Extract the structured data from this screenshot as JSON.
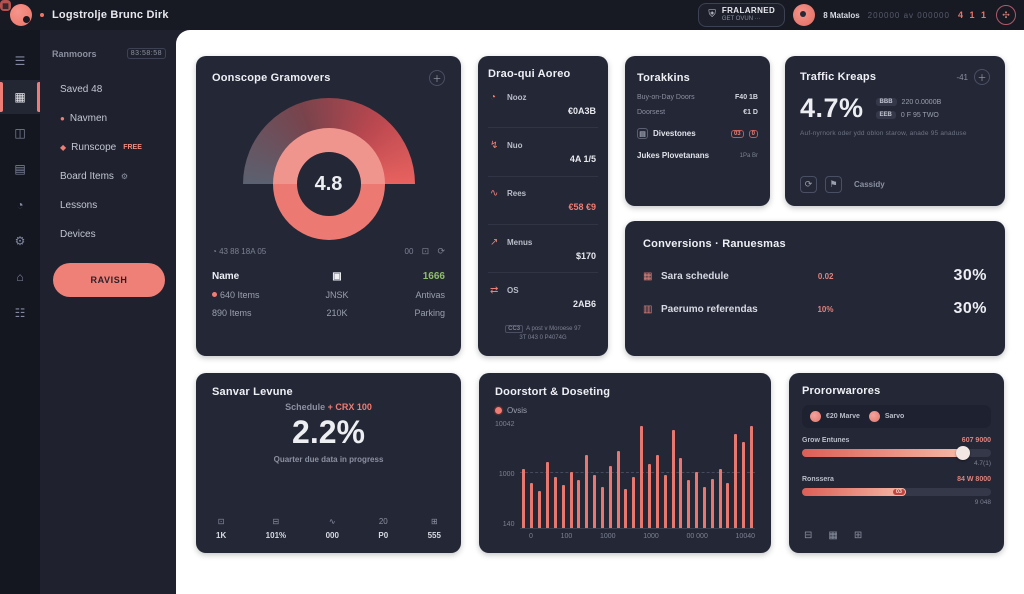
{
  "topbar": {
    "title": "Logstrolje Brunc Dirk",
    "action": {
      "label": "FRALARNED",
      "sub": "GET OVUN ···",
      "icon": "shield"
    },
    "user_name": "8 Matalos",
    "meta": "200000 av 000000",
    "alerts": "4 1 1"
  },
  "sidebar": {
    "rail": [
      {
        "name": "menu-icon",
        "glyph": "☰"
      },
      {
        "name": "dashboard-icon",
        "glyph": "▦"
      },
      {
        "name": "boards-icon",
        "glyph": "◫"
      },
      {
        "name": "calendar-icon",
        "glyph": "▤"
      },
      {
        "name": "history-icon",
        "glyph": "◔"
      },
      {
        "name": "settings-icon",
        "glyph": "⚙"
      },
      {
        "name": "home-icon",
        "glyph": "⌂"
      },
      {
        "name": "list-icon",
        "glyph": "☷"
      }
    ],
    "active_index": 1,
    "header": {
      "label": "Ranmoors",
      "badge": "83:58:58"
    },
    "items": [
      {
        "label": "Saved 48",
        "mini": "",
        "tag": "",
        "trail": ""
      },
      {
        "label": "Navmen",
        "mini": "●",
        "tag": "",
        "trail": ""
      },
      {
        "label": "Runscope",
        "mini": "◆",
        "tag": "FREE",
        "trail": ""
      },
      {
        "label": "Board Items",
        "mini": "",
        "tag": "",
        "trail": "⚙"
      },
      {
        "label": "Lessons",
        "mini": "",
        "tag": "",
        "trail": ""
      },
      {
        "label": "Devices",
        "mini": "",
        "tag": "",
        "trail": ""
      }
    ],
    "cta": "RAVISH"
  },
  "cards": {
    "overview": {
      "title": "Oonscope Gramovers",
      "gauge_value": "4.8",
      "meta_left": "43  88  18A 05",
      "meta_right": "00",
      "table": {
        "columns": [
          {
            "header": "Name",
            "header_style": "white",
            "rows": [
              "640 Items",
              "890 Items"
            ],
            "dot_first": true
          },
          {
            "header": "▣",
            "header_style": "white",
            "rows": [
              "JNSK",
              "210K"
            ],
            "dot_first": false
          },
          {
            "header": "1666",
            "header_style": "green",
            "rows": [
              "Antivas",
              "Parking"
            ],
            "dot_first": false
          }
        ]
      }
    },
    "dropoff": {
      "title": "Drao-qui Aoreo",
      "rows": [
        {
          "icon": "◔",
          "label": "Nooz",
          "value": "€0A3B",
          "accent": false
        },
        {
          "icon": "↯",
          "label": "Nuo",
          "value": "4A 1/5",
          "accent": false
        },
        {
          "icon": "∿",
          "label": "Rees",
          "value": "€58 €9",
          "accent": true
        },
        {
          "icon": "↗",
          "label": "Menus",
          "value": "$170",
          "accent": false
        },
        {
          "icon": "⇄",
          "label": "OS",
          "value": "2AB6",
          "accent": false
        }
      ],
      "footer": {
        "badge": "CC3",
        "line1": "A post v Moroese 97",
        "line2": "3T 043 0 P4074G"
      }
    },
    "tracking": {
      "title": "Torakkins",
      "stats": [
        {
          "label": "Buy-on-Day Doors",
          "value": "F40 1B"
        },
        {
          "label": "Doorsest",
          "value": "€1 D"
        }
      ],
      "divestones": {
        "label": "Divestones",
        "badges": [
          "03",
          "0"
        ]
      },
      "jukes": {
        "label": "Jukes Plovetanans",
        "trail": "1Pa  Br"
      }
    },
    "traffic": {
      "title": "Traffic Kreaps",
      "corner": "-41",
      "big_value": "4.7%",
      "side_rows": [
        {
          "badge": "BBB",
          "text": "220 0.0000B"
        },
        {
          "badge": "EEB",
          "text": "0 F 95 TWO"
        }
      ],
      "note": "Auf-nyrnork oder ydd oblon starow, anade 95 anaduse",
      "footer_label": "Cassidy"
    },
    "conversions": {
      "title": "Conversions · Ranuesmas",
      "rows": [
        {
          "icon": "▦",
          "label": "Sara schedule",
          "mid": "0.02",
          "value": "30%"
        },
        {
          "icon": "▥",
          "label": "Paerumo referendas",
          "mid": "10%",
          "value": "30%"
        }
      ]
    },
    "server": {
      "title": "Sanvar Levune",
      "eyebrow_muted": "Schedule",
      "eyebrow_accent": "+ CRX 100",
      "big_value": "2.2%",
      "subtitle": "Quarter due data in progress",
      "stats": [
        {
          "icon": "⊡",
          "value": "1K"
        },
        {
          "icon": "⊟",
          "value": "101%"
        },
        {
          "icon": "∿",
          "value": "000"
        },
        {
          "icon": "20",
          "value": "P0"
        },
        {
          "icon": "⊞",
          "value": "555"
        }
      ]
    },
    "bookings": {
      "title": "Doorstort & Doseting",
      "legend": "Ovsis"
    },
    "networks": {
      "title": "Prororwarores",
      "legend": [
        {
          "label": "€20 Marve"
        },
        {
          "label": "Sarvo"
        }
      ],
      "sliders": [
        {
          "label": "Grow Entunes",
          "value": "607 9000",
          "progress": 85,
          "sub": "4.7(1)",
          "badge": ""
        },
        {
          "label": "Ronssera",
          "value": "84 W 8000",
          "progress": 55,
          "sub": "9 048",
          "badge": "03"
        }
      ],
      "footer_icons": [
        {
          "name": "export-icon",
          "glyph": "⊟"
        },
        {
          "name": "grid-icon",
          "glyph": "▦"
        },
        {
          "name": "add-icon",
          "glyph": "⊞"
        }
      ]
    }
  },
  "chart_data": {
    "type": "bar",
    "title": "Doorstort & Doseting",
    "legend_entries": [
      "Ovsis"
    ],
    "y_ticks": [
      "10042",
      "1000",
      "140"
    ],
    "x_ticks": [
      "0",
      "100",
      "1000",
      "1000",
      "00 000",
      "10040"
    ],
    "ylim": [
      0,
      100
    ],
    "grid": "dashed-mid",
    "values": [
      55,
      42,
      35,
      62,
      48,
      40,
      52,
      45,
      68,
      50,
      38,
      58,
      72,
      36,
      48,
      95,
      60,
      68,
      50,
      92,
      65,
      45,
      52,
      38,
      46,
      55,
      42,
      88,
      80,
      95
    ]
  }
}
